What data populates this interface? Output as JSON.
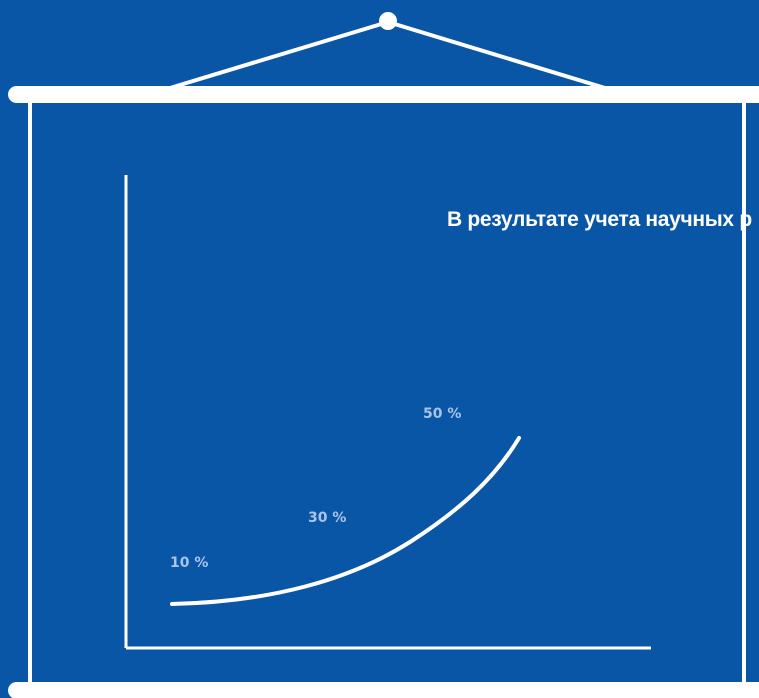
{
  "poster": {
    "headline": "В результате учета научных р",
    "colors": {
      "background": "#0a56a6",
      "line": "#ffffff",
      "label": "#a9c4e8"
    }
  },
  "chart_data": {
    "type": "line",
    "categories": [
      "10 %",
      "30 %",
      "50 %"
    ],
    "series": [
      {
        "values": [
          10,
          30,
          50
        ]
      }
    ],
    "title": "",
    "xlabel": "",
    "ylabel": ""
  }
}
